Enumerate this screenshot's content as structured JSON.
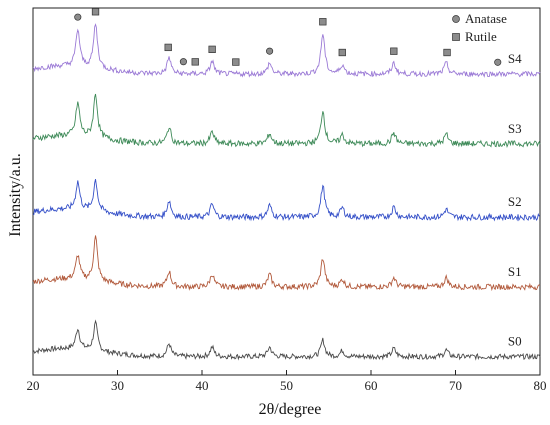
{
  "chart_data": {
    "type": "line",
    "xlabel": "2θ/degree",
    "ylabel": "Intensity/a.u.",
    "xlim": [
      20,
      80
    ],
    "ylim": [
      0,
      100
    ],
    "x_ticks": [
      "20",
      "30",
      "40",
      "50",
      "60",
      "70",
      "80"
    ],
    "y_ticks_shown": false,
    "grid": false,
    "legend": {
      "placement": "top-right",
      "entries": [
        {
          "name": "Anatase",
          "marker": "circle",
          "color": "#8c8c8c"
        },
        {
          "name": "Rutile",
          "marker": "square",
          "color": "#8c8c8c"
        }
      ]
    },
    "series": [
      {
        "name": "S0",
        "color": "#4a4a4a",
        "baseline": 5,
        "noise": 0.7,
        "peaks": [
          [
            25.3,
            5.5
          ],
          [
            27.4,
            7.5
          ],
          [
            36.1,
            3.5
          ],
          [
            41.2,
            2.6
          ],
          [
            48.0,
            2.6
          ],
          [
            54.3,
            4.5
          ],
          [
            56.6,
            1.6
          ],
          [
            62.7,
            2.2
          ],
          [
            68.9,
            1.8
          ]
        ]
      },
      {
        "name": "S1",
        "color": "#b25a3c",
        "baseline": 24,
        "noise": 0.75,
        "peaks": [
          [
            25.3,
            6.5
          ],
          [
            27.4,
            12
          ],
          [
            36.1,
            4.2
          ],
          [
            41.2,
            3.5
          ],
          [
            48.0,
            3.4
          ],
          [
            54.3,
            7.8
          ],
          [
            56.6,
            2
          ],
          [
            62.7,
            2.5
          ],
          [
            68.9,
            2.5
          ]
        ]
      },
      {
        "name": "S2",
        "color": "#3550c8",
        "baseline": 43,
        "noise": 0.8,
        "peaks": [
          [
            25.3,
            7.5
          ],
          [
            27.4,
            8.5
          ],
          [
            36.1,
            4.5
          ],
          [
            41.2,
            3.5
          ],
          [
            48.0,
            3.2
          ],
          [
            54.3,
            8.5
          ],
          [
            56.6,
            2.5
          ],
          [
            62.7,
            2.8
          ],
          [
            68.9,
            2.2
          ]
        ]
      },
      {
        "name": "S3",
        "color": "#3e8a58",
        "baseline": 63,
        "noise": 0.8,
        "peaks": [
          [
            25.3,
            9
          ],
          [
            27.4,
            12
          ],
          [
            36.1,
            4.5
          ],
          [
            41.2,
            3.2
          ],
          [
            48.0,
            2.8
          ],
          [
            54.3,
            9
          ],
          [
            56.6,
            2.4
          ],
          [
            62.7,
            3
          ],
          [
            68.9,
            2.6
          ]
        ]
      },
      {
        "name": "S4",
        "color": "#9b7ad6",
        "baseline": 82,
        "noise": 0.7,
        "peaks": [
          [
            25.3,
            10
          ],
          [
            27.4,
            12
          ],
          [
            36.1,
            4.5
          ],
          [
            41.2,
            3.5
          ],
          [
            48.0,
            3
          ],
          [
            54.3,
            11
          ],
          [
            56.6,
            2.5
          ],
          [
            62.7,
            3
          ],
          [
            68.9,
            3
          ]
        ]
      }
    ],
    "peak_markers": [
      {
        "x": 25.3,
        "type": "anatase"
      },
      {
        "x": 27.4,
        "type": "rutile"
      },
      {
        "x": 36.0,
        "type": "rutile"
      },
      {
        "x": 37.8,
        "type": "anatase"
      },
      {
        "x": 39.2,
        "type": "rutile"
      },
      {
        "x": 41.2,
        "type": "rutile"
      },
      {
        "x": 44.0,
        "type": "rutile"
      },
      {
        "x": 48.0,
        "type": "anatase"
      },
      {
        "x": 54.3,
        "type": "rutile"
      },
      {
        "x": 56.6,
        "type": "rutile"
      },
      {
        "x": 62.7,
        "type": "rutile"
      },
      {
        "x": 69.0,
        "type": "rutile"
      },
      {
        "x": 75.0,
        "type": "anatase"
      }
    ]
  }
}
